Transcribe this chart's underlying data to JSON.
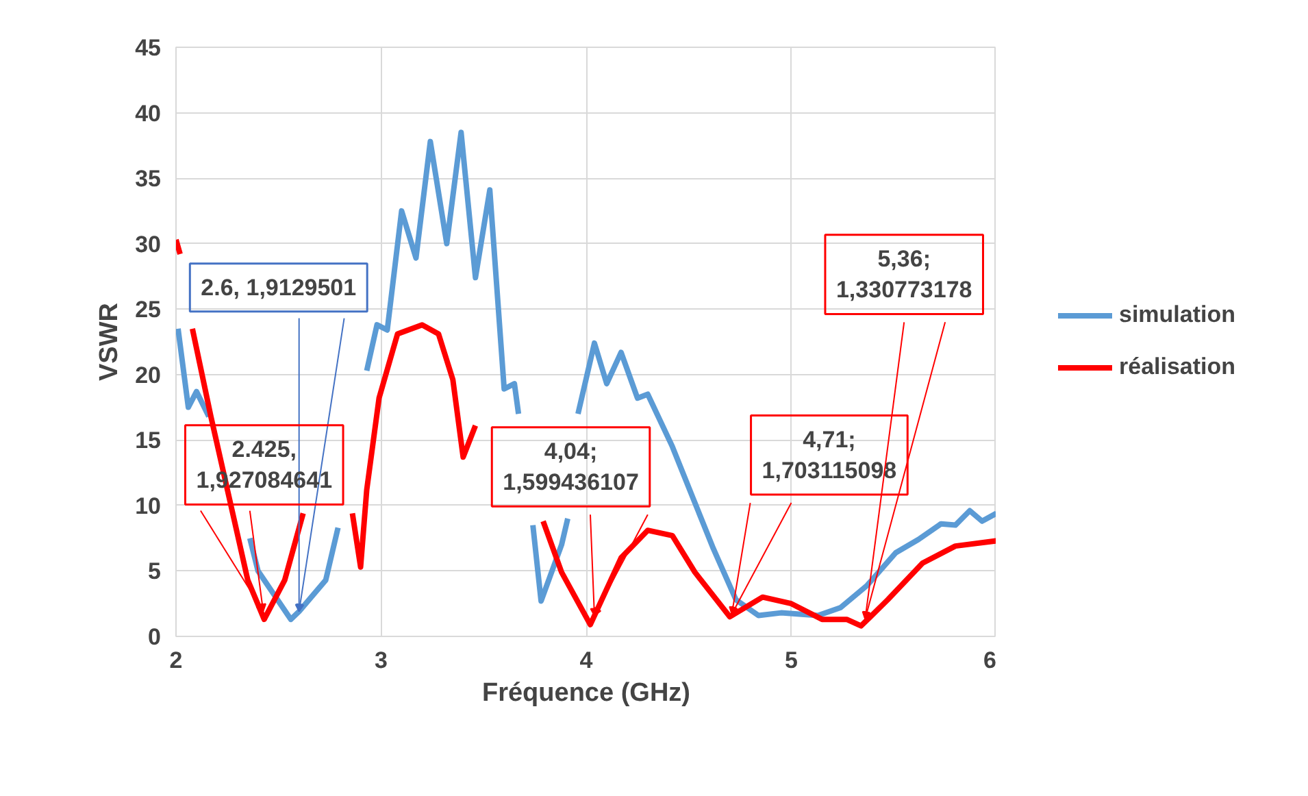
{
  "chart_data": {
    "type": "line",
    "xlabel": "Fréquence (GHz)",
    "ylabel": "VSWR",
    "xlim": [
      2,
      6
    ],
    "xticks": [
      2,
      3,
      4,
      5,
      6
    ],
    "ylim": [
      0,
      45
    ],
    "yticks": [
      0,
      5,
      10,
      15,
      20,
      25,
      30,
      35,
      40,
      45
    ],
    "grid": true,
    "legend": "right",
    "marker": "none",
    "line_style": "solid",
    "series": [
      {
        "name": "simulation",
        "color": "#5b9bd5",
        "x": [
          2.01,
          2.06,
          2.1,
          2.16,
          2.28,
          2.36,
          2.4,
          2.56,
          2.6,
          2.73,
          2.79,
          2.85,
          2.93,
          2.98,
          3.03,
          3.1,
          3.17,
          3.24,
          3.32,
          3.39,
          3.46,
          3.53,
          3.6,
          3.65,
          3.67,
          3.7,
          3.74,
          3.78,
          3.88,
          3.91,
          3.93,
          3.96,
          4.04,
          4.1,
          4.17,
          4.25,
          4.3,
          4.42,
          4.53,
          4.62,
          4.73,
          4.84,
          4.95,
          5.13,
          5.24,
          5.37,
          5.51,
          5.62,
          5.73,
          5.8,
          5.87,
          5.93,
          6.0
        ],
        "values": [
          23.5,
          17.5,
          18.7,
          16.8,
          null,
          7.5,
          5,
          1.3,
          1.9,
          4.3,
          8.3,
          null,
          20.3,
          23.8,
          23.4,
          32.5,
          28.9,
          37.8,
          30.0,
          38.5,
          27.4,
          34.1,
          18.9,
          19.3,
          17,
          null,
          8.5,
          2.7,
          7.0,
          9.0,
          null,
          17,
          22.4,
          19.3,
          21.7,
          18.2,
          18.5,
          14.5,
          10.2,
          6.7,
          2.8,
          1.6,
          1.8,
          1.6,
          2.2,
          3.9,
          6.4,
          7.4,
          8.6,
          8.5,
          9.6,
          8.8,
          9.4
        ]
      },
      {
        "name": "réalisation",
        "color": "#ff0000",
        "x": [
          2.0,
          2.02,
          2.03,
          2.08,
          2.17,
          2.35,
          2.43,
          2.53,
          2.59,
          2.62,
          2.75,
          2.86,
          2.9,
          2.93,
          2.99,
          3.08,
          3.2,
          3.28,
          3.35,
          3.4,
          3.46,
          3.6,
          3.79,
          3.88,
          4.02,
          4.17,
          4.3,
          4.42,
          4.53,
          4.7,
          4.86,
          5.0,
          5.15,
          5.27,
          5.34,
          5.47,
          5.64,
          5.8,
          6.0
        ],
        "values": [
          30.3,
          29.2,
          null,
          23.5,
          16.8,
          4.3,
          1.3,
          4.3,
          7.7,
          9.4,
          null,
          9.4,
          5.3,
          11.2,
          18.2,
          23.1,
          23.8,
          23.1,
          19.6,
          13.7,
          16.1,
          null,
          8.8,
          4.9,
          0.9,
          6.0,
          8.1,
          7.7,
          4.9,
          1.5,
          3.0,
          2.5,
          1.3,
          1.3,
          0.8,
          2.8,
          5.6,
          6.9,
          7.3
        ]
      }
    ],
    "annotations": [
      {
        "text": "2.6, 1,9129501",
        "x": 2.6,
        "y": 1.9129501
      },
      {
        "text": "2.425,\n1,927084641",
        "x": 2.425,
        "y": 1.927084641
      },
      {
        "text": "4,04;\n1,599436107",
        "x": 4.04,
        "y": 1.599436107
      },
      {
        "text": "4,71;\n1,703115098",
        "x": 4.71,
        "y": 1.703115098
      },
      {
        "text": "5,36;\n1,330773178",
        "x": 5.36,
        "y": 1.330773178
      }
    ]
  }
}
